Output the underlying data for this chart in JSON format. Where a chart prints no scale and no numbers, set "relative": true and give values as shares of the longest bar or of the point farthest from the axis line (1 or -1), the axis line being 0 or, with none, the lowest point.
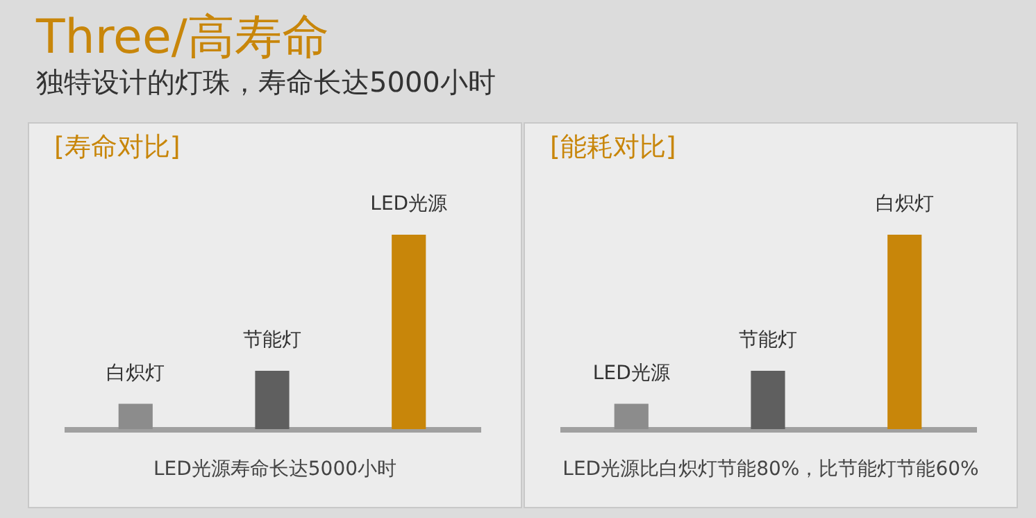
{
  "chart_data": [
    {
      "type": "other",
      "title": "Three/高寿命",
      "subtitle": "独特设计的灯珠，寿命长达5000小时"
    },
    {
      "type": "bar",
      "title": "[寿命对比]",
      "categories": [
        "白炽灯",
        "节能灯",
        "LED光源"
      ],
      "values": [
        0.13,
        0.3,
        1
      ],
      "colors": [
        "#8c8c8c",
        "#5f5f5f",
        "#c8860a"
      ],
      "relative": true,
      "annotations": [
        "LED光源寿命长达5000小时"
      ]
    },
    {
      "type": "bar",
      "title": "[能耗对比]",
      "categories": [
        "LED光源",
        "节能灯",
        "白炽灯"
      ],
      "values": [
        0.13,
        0.3,
        1
      ],
      "colors": [
        "#8c8c8c",
        "#5f5f5f",
        "#c8860a"
      ],
      "relative": true,
      "annotations": [
        "LED光源比白炽灯节能80%，比节能灯节能60%"
      ]
    }
  ]
}
